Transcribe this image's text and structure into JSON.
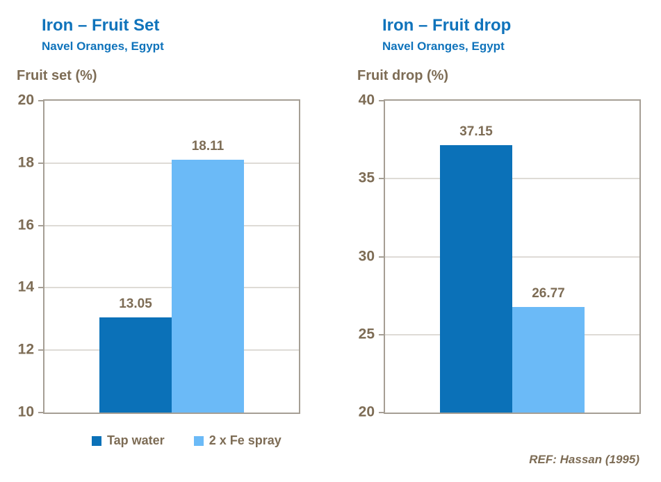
{
  "colors": {
    "title_blue": "#0F73BB",
    "bar_dark": "#0B71B8",
    "bar_light": "#6BBAF7",
    "text_brown": "#7D6C55",
    "axis_border": "#A59E94",
    "gridline": "#BEB7AD",
    "background": "#FFFFFF"
  },
  "charts": [
    {
      "title": "Iron – Fruit Set",
      "subtitle": "Navel Oranges, Egypt",
      "axis_label": "Fruit set (%)",
      "chart_data": {
        "type": "bar",
        "categories": [
          "Tap water",
          "2 x Fe spray"
        ],
        "values": [
          13.05,
          18.11
        ],
        "value_labels": [
          "13.05",
          "18.11"
        ],
        "bar_colors": [
          "#0B71B8",
          "#6BBAF7"
        ],
        "title": "Iron – Fruit Set",
        "subtitle": "Navel Oranges, Egypt",
        "xlabel": "",
        "ylabel": "Fruit set (%)",
        "ylim": [
          10,
          20
        ],
        "yticks": [
          10,
          12,
          14,
          16,
          18,
          20
        ],
        "grid": true,
        "legend_position": "bottom"
      }
    },
    {
      "title": "Iron – Fruit drop",
      "subtitle": "Navel Oranges, Egypt",
      "axis_label": "Fruit drop (%)",
      "chart_data": {
        "type": "bar",
        "categories": [
          "Tap water",
          "2 x Fe spray"
        ],
        "values": [
          37.15,
          26.77
        ],
        "value_labels": [
          "37.15",
          "26.77"
        ],
        "bar_colors": [
          "#0B71B8",
          "#6BBAF7"
        ],
        "title": "Iron – Fruit drop",
        "subtitle": "Navel Oranges, Egypt",
        "xlabel": "",
        "ylabel": "Fruit drop (%)",
        "ylim": [
          20,
          40
        ],
        "yticks": [
          20,
          25,
          30,
          35,
          40
        ],
        "grid": true,
        "legend_position": "none"
      }
    }
  ],
  "legend": {
    "items": [
      {
        "label": "Tap water",
        "color": "#0B71B8"
      },
      {
        "label": "2 x Fe spray",
        "color": "#6BBAF7"
      }
    ]
  },
  "reference": "REF: Hassan (1995)"
}
